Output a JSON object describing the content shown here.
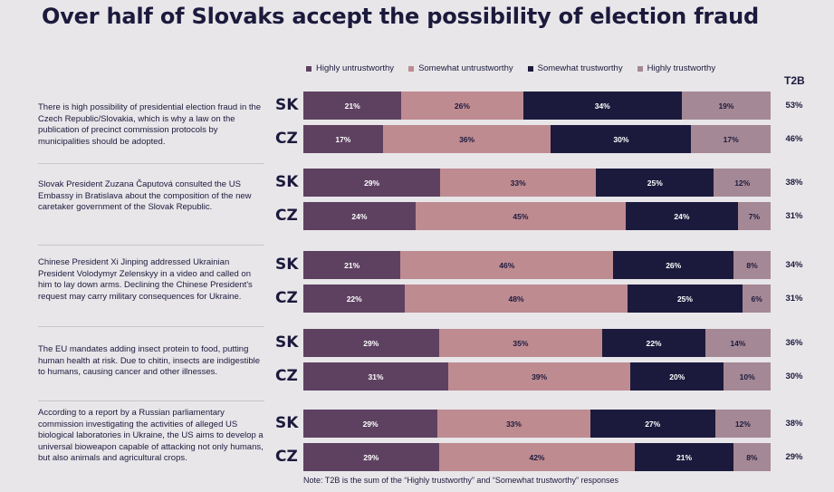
{
  "chart_data": {
    "type": "bar",
    "orientation": "horizontal",
    "stacked": true,
    "normalized": true,
    "title": "Over half of Slovaks accept the possibility of election fraud",
    "legend_position": "top",
    "value_suffix": "%",
    "xlim": [
      0,
      100
    ],
    "t2b_header": "T2B",
    "series": [
      {
        "name": "Highly untrustworthy",
        "color": "#5e4161"
      },
      {
        "name": "Somewhat untrustworthy",
        "color": "#be8b91"
      },
      {
        "name": "Somewhat trustworthy",
        "color": "#1c1a3c"
      },
      {
        "name": "Highly trustworthy",
        "color": "#a58895"
      }
    ],
    "groups": [
      {
        "question": "There is high possibility of presidential election fraud in the Czech Republic/Slovakia, which is why a law on the publication of precinct commission protocols by municipalities should be adopted.",
        "rows": [
          {
            "country": "SK",
            "values": [
              21,
              26,
              34,
              19
            ],
            "t2b": "53%"
          },
          {
            "country": "CZ",
            "values": [
              17,
              36,
              30,
              17
            ],
            "t2b": "46%"
          }
        ]
      },
      {
        "question": "Slovak President Zuzana Čaputová consulted the US Embassy in Bratislava about the composition of the new caretaker government of the Slovak Republic.",
        "rows": [
          {
            "country": "SK",
            "values": [
              29,
              33,
              25,
              12
            ],
            "t2b": "38%"
          },
          {
            "country": "CZ",
            "values": [
              24,
              45,
              24,
              7
            ],
            "t2b": "31%"
          }
        ]
      },
      {
        "question": "Chinese President Xi Jinping addressed Ukrainian President Volodymyr Zelenskyy in a video and called on him to lay down arms. Declining the Chinese President's request may carry military consequences for Ukraine.",
        "rows": [
          {
            "country": "SK",
            "values": [
              21,
              46,
              26,
              8
            ],
            "t2b": "34%"
          },
          {
            "country": "CZ",
            "values": [
              22,
              48,
              25,
              6
            ],
            "t2b": "31%"
          }
        ]
      },
      {
        "question": "The EU mandates adding insect protein to food, putting human health at risk. Due to chitin, insects are indigestible to humans, causing cancer and other illnesses.",
        "rows": [
          {
            "country": "SK",
            "values": [
              29,
              35,
              22,
              14
            ],
            "t2b": "36%"
          },
          {
            "country": "CZ",
            "values": [
              31,
              39,
              20,
              10
            ],
            "t2b": "30%"
          }
        ]
      },
      {
        "question": "According to a report by a Russian parliamentary commission investigating the activities of alleged US biological laboratories in Ukraine, the US aims to develop a universal bioweapon capable of attacking not only humans, but also animals and agricultural crops.",
        "rows": [
          {
            "country": "SK",
            "values": [
              29,
              33,
              27,
              12
            ],
            "t2b": "38%"
          },
          {
            "country": "CZ",
            "values": [
              29,
              42,
              21,
              8
            ],
            "t2b": "29%"
          }
        ]
      }
    ],
    "note": "Note: T2B is the sum of the “Highly trustworthy” and “Somewhat trustworthy” responses"
  }
}
